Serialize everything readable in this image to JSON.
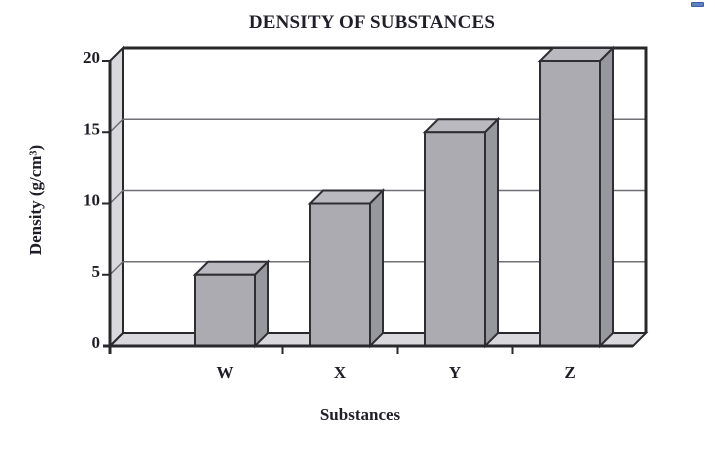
{
  "page": {
    "background": "#ffffff"
  },
  "artifact": {
    "blue_dash_color": "#5b80c4"
  },
  "chart_data": {
    "type": "bar",
    "style": "3d-column",
    "title": "DENSITY OF SUBSTANCES",
    "xlabel": "Substances",
    "ylabel": "Density (g/cm³)",
    "categories": [
      "W",
      "X",
      "Y",
      "Z"
    ],
    "values": [
      5,
      10,
      15,
      20
    ],
    "ylim": [
      0,
      20
    ],
    "yticks": [
      0,
      5,
      10,
      15,
      20
    ],
    "grid": true,
    "legend": "none",
    "colors": {
      "bar_front": "#ababb1",
      "bar_top": "#b9b9bf",
      "bar_side": "#97979e",
      "bar_outline": "#2e2e33",
      "wall_fill": "#d9d9dd",
      "back_wall_fill": "#ffffff",
      "gridline": "#6f6f74",
      "axis": "#29292c",
      "text": "#1d1d26"
    }
  }
}
